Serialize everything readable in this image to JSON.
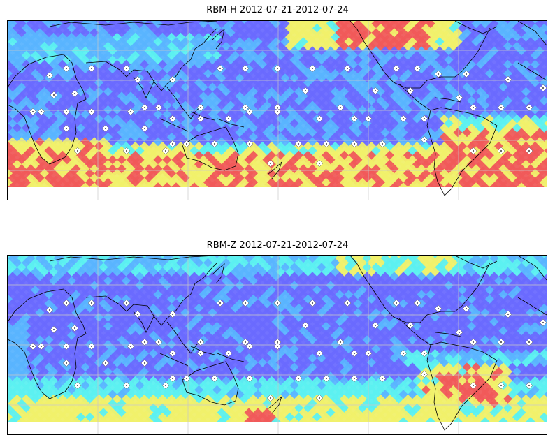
{
  "panels": [
    {
      "id": "rbm-h",
      "title": "RBM-H 2012-07-21-2012-07-24",
      "field": "RBM-H geomagnetic field intensity map"
    },
    {
      "id": "rbm-z",
      "title": "RBM-Z 2012-07-21-2012-07-24",
      "field": "RBM-Z geomagnetic field intensity map"
    }
  ],
  "colors": {
    "low": "#6a6aff",
    "mid_low": "#5ab4ff",
    "mid": "#5cf0f0",
    "mid_high": "#f0f06a",
    "high": "#f05a5a",
    "very_high": "#b46a6a",
    "coast": "#000000",
    "grid": "#c8c8c8",
    "station": "#ffffff"
  }
}
